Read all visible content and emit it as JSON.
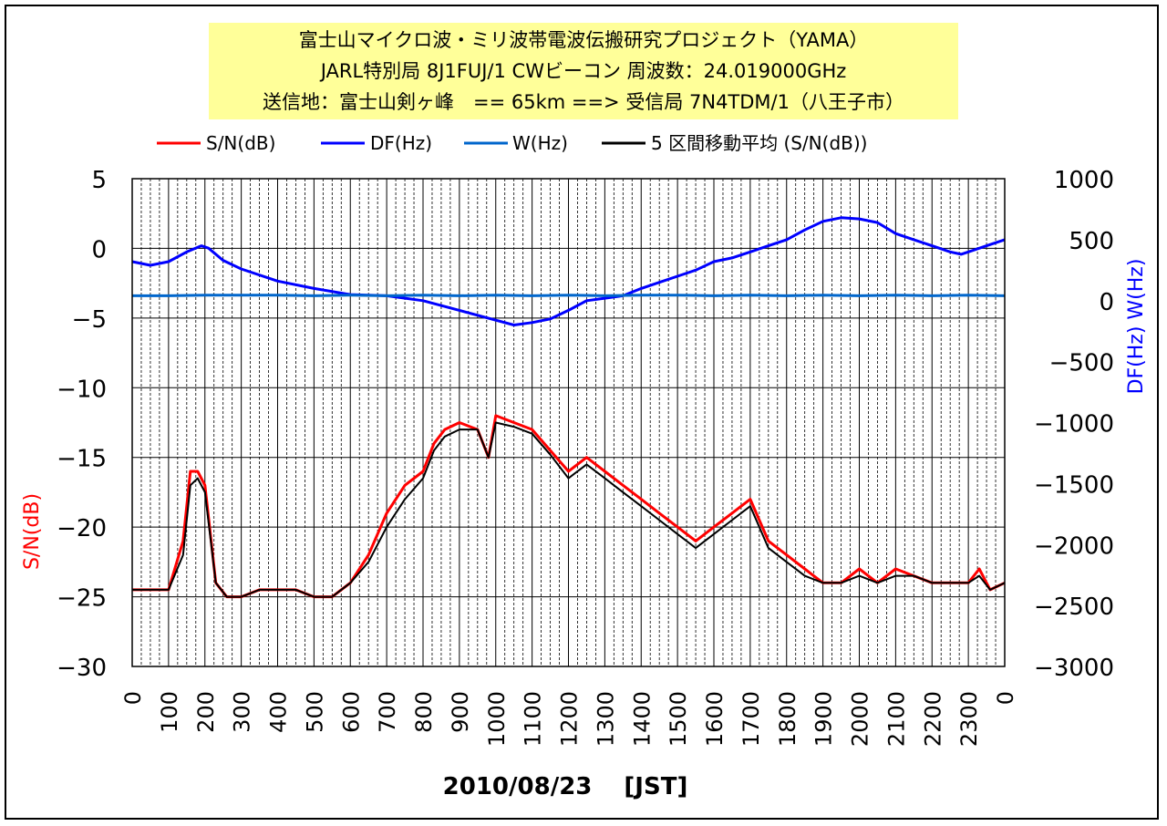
{
  "title_lines": [
    "富士山マイクロ波・ミリ波帯電波伝搬研究プロジェクト（YAMA）",
    "JARL特別局 8J1FUJ/1 CWビーコン 周波数：24.019000GHz",
    "送信地：富士山剣ヶ峰　== 65km ==> 受信局 7N4TDM/1（八王子市）"
  ],
  "chart_data": {
    "type": "line",
    "xlabel": "2010/08/23　 [JST]",
    "ylabel_left": "S/N(dB)",
    "ylabel_right": "DF(Hz)  W(Hz)",
    "ylim_left": [
      -30,
      5
    ],
    "ylim_right": [
      -3000,
      1000
    ],
    "xlim": [
      0,
      2400
    ],
    "yticks_left": [
      "5",
      "0",
      "−5",
      "−10",
      "−15",
      "−20",
      "−25",
      "−30"
    ],
    "yticks_right": [
      "1000",
      "500",
      "0",
      "−500",
      "−1000",
      "−1500",
      "−2000",
      "−2500",
      "−3000"
    ],
    "xticks": [
      "0",
      "100",
      "200",
      "300",
      "400",
      "500",
      "600",
      "700",
      "800",
      "900",
      "1000",
      "1100",
      "1200",
      "1300",
      "1400",
      "1500",
      "1600",
      "1700",
      "1800",
      "1900",
      "2000",
      "2100",
      "2200",
      "2300",
      "0"
    ],
    "grid": true,
    "legend_placement": "top",
    "series": [
      {
        "name": "S/N(dB)",
        "axis": "left",
        "color": "#ff0000",
        "x": [
          0,
          50,
          100,
          140,
          160,
          180,
          200,
          230,
          260,
          300,
          350,
          400,
          450,
          500,
          550,
          600,
          650,
          700,
          750,
          800,
          830,
          860,
          900,
          950,
          980,
          1000,
          1050,
          1100,
          1150,
          1200,
          1250,
          1300,
          1350,
          1400,
          1450,
          1500,
          1550,
          1600,
          1650,
          1700,
          1750,
          1800,
          1850,
          1900,
          1950,
          2000,
          2050,
          2100,
          2150,
          2200,
          2250,
          2300,
          2330,
          2360,
          2400
        ],
        "y": [
          -24.5,
          -24.5,
          -24.5,
          -21,
          -16,
          -16,
          -17,
          -24,
          -25,
          -25,
          -24.5,
          -24.5,
          -24.5,
          -25,
          -25,
          -24,
          -22,
          -19,
          -17,
          -16,
          -14,
          -13,
          -12.5,
          -13,
          -15,
          -12,
          -12.5,
          -13,
          -14.5,
          -16,
          -15,
          -16,
          -17,
          -18,
          -19,
          -20,
          -21,
          -20,
          -19,
          -18,
          -21,
          -22,
          -23,
          -24,
          -24,
          -23,
          -24,
          -23,
          -23.5,
          -24,
          -24,
          -24,
          -23,
          -24.5,
          -24
        ]
      },
      {
        "name": "DF(Hz)",
        "axis": "right",
        "color": "#0000ff",
        "x": [
          0,
          50,
          100,
          150,
          190,
          210,
          250,
          300,
          400,
          500,
          600,
          700,
          800,
          900,
          1000,
          1050,
          1100,
          1150,
          1200,
          1250,
          1300,
          1350,
          1400,
          1450,
          1500,
          1550,
          1600,
          1650,
          1700,
          1750,
          1800,
          1850,
          1900,
          1950,
          2000,
          2050,
          2100,
          2150,
          2200,
          2250,
          2280,
          2300,
          2350,
          2400
        ],
        "y": [
          320,
          290,
          320,
          400,
          450,
          430,
          330,
          260,
          160,
          100,
          50,
          40,
          0,
          -80,
          -160,
          -200,
          -180,
          -150,
          -80,
          0,
          20,
          40,
          100,
          150,
          200,
          250,
          320,
          350,
          400,
          450,
          500,
          580,
          650,
          680,
          670,
          640,
          550,
          500,
          450,
          400,
          380,
          400,
          450,
          500
        ]
      },
      {
        "name": "W(Hz)",
        "axis": "right",
        "color": "#0066cc",
        "x": [
          0,
          100,
          200,
          300,
          400,
          500,
          600,
          700,
          800,
          900,
          1000,
          1100,
          1200,
          1300,
          1400,
          1500,
          1600,
          1700,
          1800,
          1900,
          2000,
          2100,
          2200,
          2300,
          2400
        ],
        "y": [
          40,
          40,
          45,
          45,
          45,
          40,
          45,
          40,
          45,
          40,
          45,
          40,
          45,
          40,
          45,
          45,
          40,
          45,
          40,
          45,
          40,
          45,
          40,
          45,
          40
        ]
      },
      {
        "name": "5 区間移動平均 (S/N(dB))",
        "axis": "left",
        "color": "#000000",
        "x": [
          0,
          50,
          100,
          140,
          160,
          180,
          200,
          230,
          260,
          300,
          350,
          400,
          450,
          500,
          550,
          600,
          650,
          700,
          750,
          800,
          830,
          860,
          900,
          950,
          980,
          1000,
          1050,
          1100,
          1150,
          1200,
          1250,
          1300,
          1350,
          1400,
          1450,
          1500,
          1550,
          1600,
          1650,
          1700,
          1750,
          1800,
          1850,
          1900,
          1950,
          2000,
          2050,
          2100,
          2150,
          2200,
          2250,
          2300,
          2330,
          2360,
          2400
        ],
        "y": [
          -24.5,
          -24.5,
          -24.5,
          -22,
          -17,
          -16.5,
          -17.5,
          -24,
          -25,
          -25,
          -24.5,
          -24.5,
          -24.5,
          -25,
          -25,
          -24,
          -22.5,
          -20,
          -18,
          -16.5,
          -14.5,
          -13.5,
          -13,
          -13,
          -15,
          -12.5,
          -12.8,
          -13.3,
          -14.8,
          -16.5,
          -15.5,
          -16.5,
          -17.5,
          -18.5,
          -19.5,
          -20.5,
          -21.5,
          -20.5,
          -19.5,
          -18.5,
          -21.5,
          -22.5,
          -23.5,
          -24,
          -24,
          -23.5,
          -24,
          -23.5,
          -23.5,
          -24,
          -24,
          -24,
          -23.5,
          -24.5,
          -24
        ]
      }
    ]
  }
}
